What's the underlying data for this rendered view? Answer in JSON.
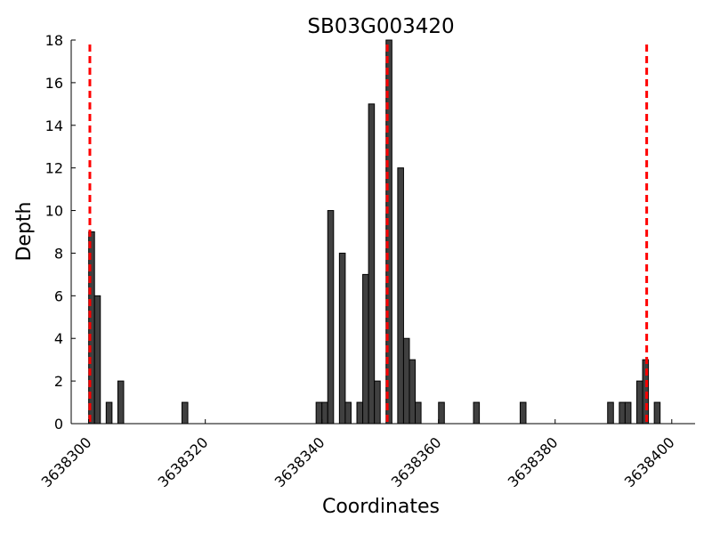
{
  "chart_data": {
    "type": "bar",
    "title": "SB03G003420",
    "xlabel": "Coordinates",
    "ylabel": "Depth",
    "xlim": [
      3638297,
      3638404
    ],
    "ylim": [
      0,
      18
    ],
    "xticks": [
      3638300,
      3638320,
      3638340,
      3638360,
      3638380,
      3638400
    ],
    "yticks": [
      0,
      2,
      4,
      6,
      8,
      10,
      12,
      14,
      16,
      18
    ],
    "grid": false,
    "bar_color": "#404040",
    "bar_edge_color": "#000000",
    "bars": [
      {
        "x": 3638300,
        "y": 9
      },
      {
        "x": 3638301,
        "y": 6
      },
      {
        "x": 3638303,
        "y": 1
      },
      {
        "x": 3638305,
        "y": 2
      },
      {
        "x": 3638316,
        "y": 1
      },
      {
        "x": 3638339,
        "y": 1
      },
      {
        "x": 3638340,
        "y": 1
      },
      {
        "x": 3638341,
        "y": 10
      },
      {
        "x": 3638343,
        "y": 8
      },
      {
        "x": 3638344,
        "y": 1
      },
      {
        "x": 3638346,
        "y": 1
      },
      {
        "x": 3638347,
        "y": 7
      },
      {
        "x": 3638348,
        "y": 15
      },
      {
        "x": 3638349,
        "y": 2
      },
      {
        "x": 3638351,
        "y": 18
      },
      {
        "x": 3638353,
        "y": 12
      },
      {
        "x": 3638354,
        "y": 4
      },
      {
        "x": 3638355,
        "y": 3
      },
      {
        "x": 3638356,
        "y": 1
      },
      {
        "x": 3638360,
        "y": 1
      },
      {
        "x": 3638366,
        "y": 1
      },
      {
        "x": 3638374,
        "y": 1
      },
      {
        "x": 3638389,
        "y": 1
      },
      {
        "x": 3638391,
        "y": 1
      },
      {
        "x": 3638392,
        "y": 1
      },
      {
        "x": 3638394,
        "y": 2
      },
      {
        "x": 3638395,
        "y": 3
      },
      {
        "x": 3638397,
        "y": 1
      }
    ],
    "bar_width": 1,
    "reference_lines": [
      {
        "x": 3638300.2,
        "color": "#ff0000",
        "style": "dashed"
      },
      {
        "x": 3638351.2,
        "color": "#ff0000",
        "style": "dashed"
      },
      {
        "x": 3638395.7,
        "color": "#ff0000",
        "style": "dashed"
      }
    ]
  }
}
